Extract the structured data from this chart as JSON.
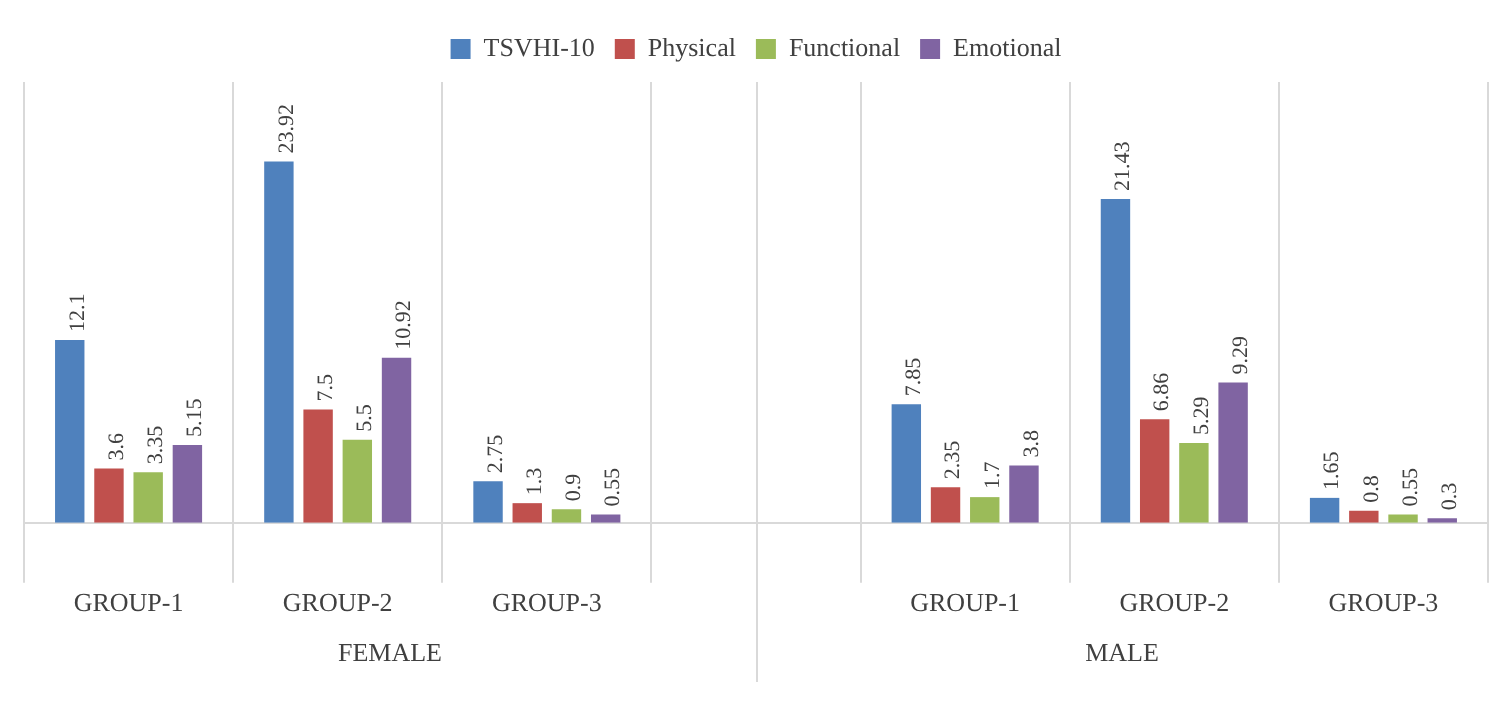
{
  "chart_data": {
    "type": "bar",
    "categories": [
      "GROUP-1",
      "GROUP-2",
      "GROUP-3",
      null,
      "GROUP-1",
      "GROUP-2",
      "GROUP-3"
    ],
    "series": [
      {
        "name": "TSVHI-10",
        "color": "#4f81bd",
        "values": [
          12.1,
          23.92,
          2.75,
          null,
          7.85,
          21.43,
          1.65
        ]
      },
      {
        "name": "Physical",
        "color": "#c0504d",
        "values": [
          3.6,
          7.5,
          1.3,
          null,
          2.35,
          6.86,
          0.8
        ]
      },
      {
        "name": "Functional",
        "color": "#9bbb59",
        "values": [
          3.35,
          5.5,
          0.9,
          null,
          1.7,
          5.29,
          0.55
        ]
      },
      {
        "name": "Emotional",
        "color": "#8064a2",
        "values": [
          5.15,
          10.92,
          0.55,
          null,
          3.8,
          9.29,
          0.3
        ]
      }
    ],
    "annotations": [
      "FEMALE",
      "MALE"
    ],
    "data_labels": true,
    "grid": "x",
    "legend": "top"
  }
}
